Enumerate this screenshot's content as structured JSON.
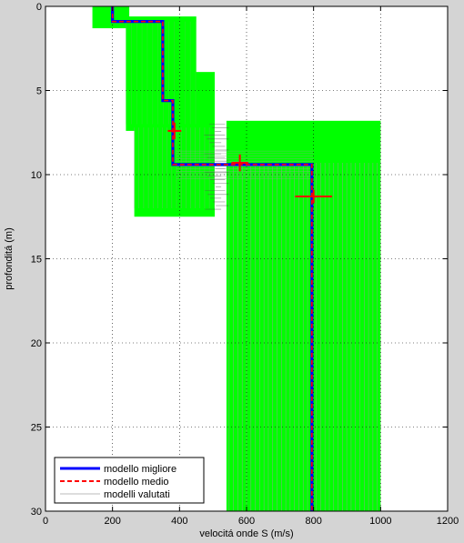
{
  "chart_data": {
    "type": "line",
    "xlabel": "velocitá onde S (m/s)",
    "ylabel": "profonditá (m)",
    "xlim": [
      0,
      1200
    ],
    "ylim": [
      30,
      0
    ],
    "xticks": [
      0,
      200,
      400,
      600,
      800,
      1000,
      1200
    ],
    "yticks": [
      0,
      5,
      10,
      15,
      20,
      25,
      30
    ],
    "grid": true,
    "legend_position": "bottom-left",
    "colors": {
      "best": "#0000ff",
      "mean": "#ff0000",
      "evaluated": "#9a9a9a",
      "search_band": "#00ff00"
    },
    "search_bands": [
      {
        "vs_min": 140,
        "vs_max": 250,
        "z_top": 0.0,
        "z_bottom": 1.3
      },
      {
        "vs_min": 240,
        "vs_max": 450,
        "z_top": 0.6,
        "z_bottom": 7.4
      },
      {
        "vs_min": 265,
        "vs_max": 505,
        "z_top": 3.9,
        "z_bottom": 12.5
      },
      {
        "vs_min": 540,
        "vs_max": 1000,
        "z_top": 6.8,
        "z_bottom": 30.0
      }
    ],
    "series": [
      {
        "name": "modello migliore",
        "style": "solid",
        "vs": [
          200,
          200,
          350,
          350,
          380,
          380,
          795,
          795
        ],
        "depth": [
          0,
          0.9,
          0.9,
          5.6,
          5.6,
          9.4,
          9.4,
          30
        ]
      },
      {
        "name": "modello medio",
        "style": "dashed",
        "vs": [
          200,
          200,
          350,
          350,
          380,
          380,
          795,
          795
        ],
        "depth": [
          0,
          0.9,
          0.9,
          5.6,
          5.6,
          9.4,
          9.4,
          30
        ]
      },
      {
        "name": "modelli valutati",
        "style": "thin"
      }
    ],
    "error_markers": [
      {
        "vs": 385,
        "depth": 7.4,
        "vs_err": 20,
        "z_err": 0.5
      },
      {
        "vs": 580,
        "depth": 9.3,
        "vs_err": 25,
        "z_err": 0.5
      },
      {
        "vs": 800,
        "depth": 11.3,
        "vs_err": 55,
        "z_err": 0.4
      }
    ]
  }
}
